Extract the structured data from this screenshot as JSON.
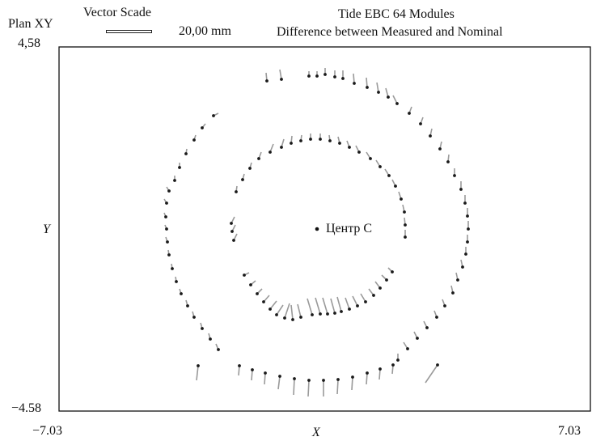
{
  "header": {
    "plan_label": "Plan XY",
    "vector_scale_label": "Vector Scade",
    "scale_value": "20,00 mm",
    "title_line1": "Tide EBC  64 Modules",
    "title_line2": "Difference between Measured and Nominal"
  },
  "axes": {
    "x_label": "X",
    "y_label": "Y",
    "x_min_label": "−7.03",
    "x_max_label": "7.03",
    "y_min_label": "−4.58",
    "y_max_label": "4,58",
    "xlim": [
      -7.03,
      7.03
    ],
    "ylim": [
      -4.58,
      4.58
    ]
  },
  "center_label": "Центр C",
  "colors": {
    "vector": "#9a9a9a",
    "point": "#1a1a1a",
    "frame": "#111111"
  }
}
